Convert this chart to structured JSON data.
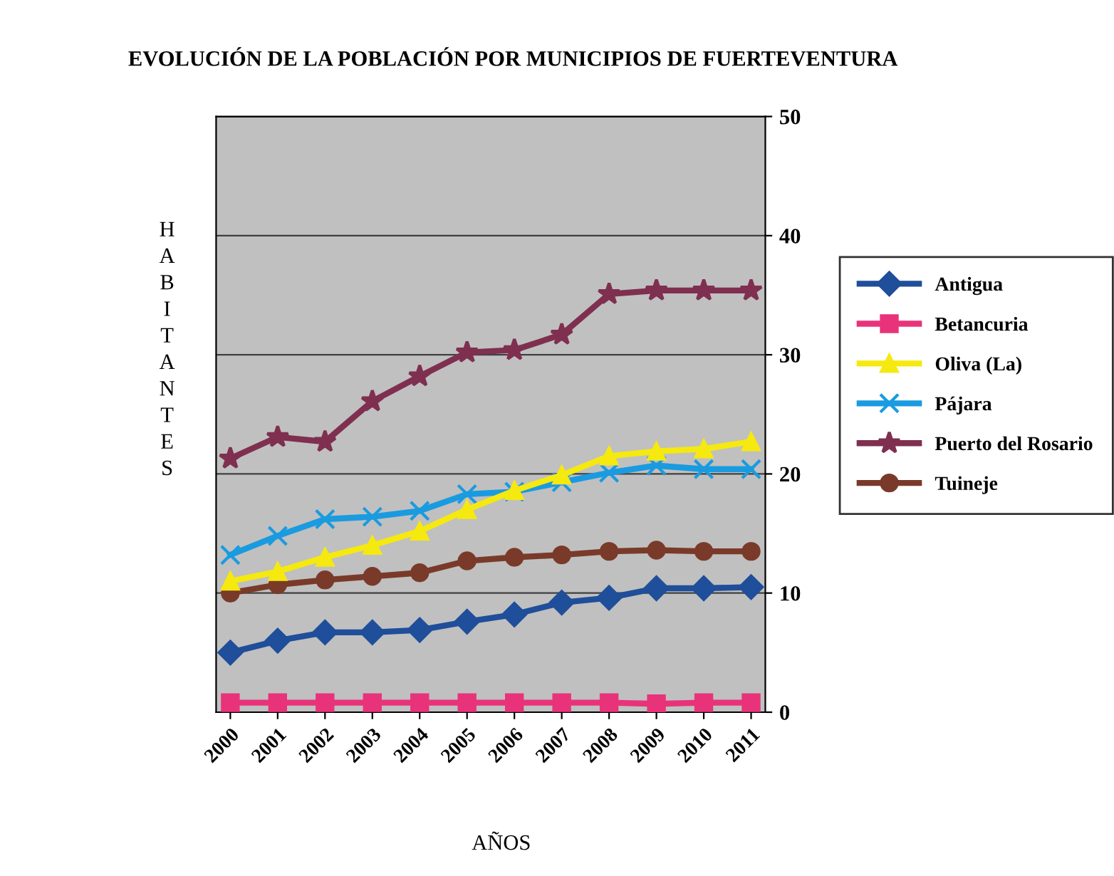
{
  "chart_data": {
    "type": "line",
    "title": "EVOLUCIÓN DE LA POBLACIÓN POR MUNICIPIOS DE FUERTEVENTURA",
    "xlabel": "AÑOS",
    "ylabel": "HABITANTES",
    "categories": [
      "2000",
      "2001",
      "2002",
      "2003",
      "2004",
      "2005",
      "2006",
      "2007",
      "2008",
      "2009",
      "2010",
      "2011"
    ],
    "series": [
      {
        "name": "Antigua",
        "color": "#1f4e9a",
        "marker": "diamond",
        "values": [
          5.0,
          6.0,
          6.7,
          6.7,
          6.9,
          7.6,
          8.2,
          9.2,
          9.6,
          10.4,
          10.4,
          10.5
        ]
      },
      {
        "name": "Betancuria",
        "color": "#e8337a",
        "marker": "square",
        "values": [
          0.8,
          0.8,
          0.8,
          0.8,
          0.8,
          0.8,
          0.8,
          0.8,
          0.8,
          0.7,
          0.8,
          0.8
        ]
      },
      {
        "name": "Oliva (La)",
        "color": "#f5e90f",
        "marker": "triangle",
        "values": [
          11.0,
          11.8,
          13.0,
          14.0,
          15.2,
          17.0,
          18.6,
          19.9,
          21.5,
          21.9,
          22.1,
          22.7
        ]
      },
      {
        "name": "Pájara",
        "color": "#1a9be0",
        "marker": "cross",
        "values": [
          13.2,
          14.8,
          16.2,
          16.4,
          16.9,
          18.3,
          18.5,
          19.3,
          20.1,
          20.7,
          20.4,
          20.4
        ]
      },
      {
        "name": "Puerto del Rosario",
        "color": "#7f2f4f",
        "marker": "star",
        "values": [
          21.3,
          23.1,
          22.7,
          26.1,
          28.2,
          30.2,
          30.4,
          31.7,
          35.1,
          35.4,
          35.4,
          35.4
        ]
      },
      {
        "name": "Tuineje",
        "color": "#7a3a2a",
        "marker": "circle",
        "values": [
          10.0,
          10.7,
          11.1,
          11.4,
          11.7,
          12.7,
          13.0,
          13.2,
          13.5,
          13.6,
          13.5,
          13.5
        ]
      }
    ],
    "ylim": [
      0,
      50
    ],
    "yticks": [
      0,
      10,
      20,
      30,
      40,
      50
    ],
    "grid": "y",
    "legend": "right"
  }
}
